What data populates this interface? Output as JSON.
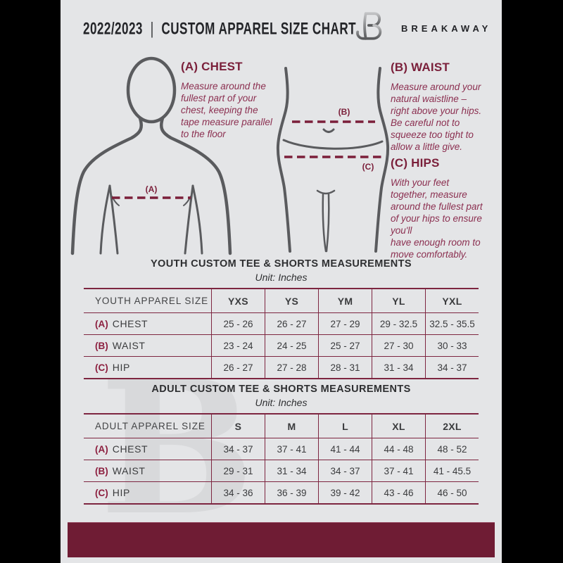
{
  "header": {
    "season": "2022/2023",
    "divider": "|",
    "title": "CUSTOM APPAREL SIZE CHART",
    "brand": "BREAKAWAY",
    "logo_letter": "B"
  },
  "measure_guide": {
    "instructions": [
      {
        "heading": "(A) CHEST",
        "body": "Measure around the\nfullest part of your\nchest, keeping the\ntape measure parallel\nto the floor"
      },
      {
        "heading": "(B) WAIST",
        "body": "Measure around your\nnatural waistline –\nright above your hips.\nBe careful not to\nsqueeze too tight to\nallow a little give."
      },
      {
        "heading": "(C) HIPS",
        "body": "With your feet\ntogether, measure\naround the fullest part\nof your hips to ensure\nyou'll\nhave enough room to\nmove comfortably."
      }
    ],
    "figure_labels": {
      "chest": "(A)",
      "waist": "(B)",
      "hips": "(C)"
    }
  },
  "youth_table": {
    "title": "YOUTH CUSTOM TEE & SHORTS MEASUREMENTS",
    "unit": "Unit: Inches",
    "size_header": "YOUTH APPAREL SIZE",
    "sizes": [
      "YXS",
      "YS",
      "YM",
      "YL",
      "YXL"
    ],
    "rows": [
      {
        "prefix": "(A)",
        "label": "CHEST",
        "values": [
          "25 - 26",
          "26 - 27",
          "27 - 29",
          "29 - 32.5",
          "32.5 - 35.5"
        ]
      },
      {
        "prefix": "(B)",
        "label": "WAIST",
        "values": [
          "23 - 24",
          "24 - 25",
          "25 - 27",
          "27 - 30",
          "30 - 33"
        ]
      },
      {
        "prefix": "(C)",
        "label": "HIP",
        "values": [
          "26 - 27",
          "27 - 28",
          "28 - 31",
          "31 - 34",
          "34 - 37"
        ]
      }
    ]
  },
  "adult_table": {
    "title": "ADULT CUSTOM TEE & SHORTS MEASUREMENTS",
    "unit": "Unit: Inches",
    "size_header": "ADULT APPAREL SIZE",
    "sizes": [
      "S",
      "M",
      "L",
      "XL",
      "2XL"
    ],
    "rows": [
      {
        "prefix": "(A)",
        "label": "CHEST",
        "values": [
          "34 - 37",
          "37 - 41",
          "41 - 44",
          "44 - 48",
          "48 - 52"
        ]
      },
      {
        "prefix": "(B)",
        "label": "WAIST",
        "values": [
          "29 - 31",
          "31 - 34",
          "34 - 37",
          "37 - 41",
          "41 - 45.5"
        ]
      },
      {
        "prefix": "(C)",
        "label": "HIP",
        "values": [
          "34 - 36",
          "36 - 39",
          "39 - 42",
          "43 - 46",
          "46 - 50"
        ]
      }
    ]
  },
  "colors": {
    "maroon_accent": "#7a1f3a",
    "footer_bar": "#6f1c34",
    "table_border": "#7d2540",
    "instruction_text": "#8b2f50",
    "dark_text": "#3a3b3d",
    "page_background": "#e4e5e7",
    "figure_stroke": "#5a5b5e",
    "watermark": "#d8d9db"
  }
}
